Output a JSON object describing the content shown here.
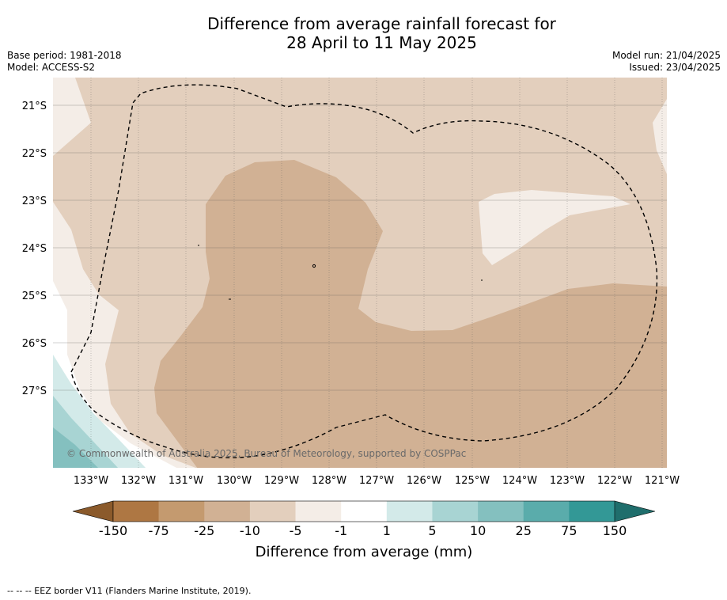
{
  "header": {
    "title_line1": "Difference from average rainfall forecast for",
    "title_line2": "28 April to 11 May 2025",
    "base_period": "Base period: 1981-2018",
    "model": "Model: ACCESS-S2",
    "model_run": "Model run: 21/04/2025",
    "issued": "Issued: 23/04/2025"
  },
  "map": {
    "lon_labels": [
      "133°W",
      "132°W",
      "131°W",
      "130°W",
      "129°W",
      "128°W",
      "127°W",
      "126°W",
      "125°W",
      "124°W",
      "123°W",
      "122°W",
      "121°W"
    ],
    "lat_labels": [
      "21°S",
      "22°S",
      "23°S",
      "24°S",
      "25°S",
      "26°S",
      "27°S"
    ],
    "copyright": "© Commonwealth of Australia 2025, Bureau of Meteorology, supported by COSPPac",
    "colors": {
      "neg_very_strong": "#8b5a2b",
      "neg_150_75": "#ae7743",
      "neg_75_25": "#c49a6f",
      "neg_25_10": "#d1b194",
      "neg_10_5": "#e3cfbd",
      "neg_5_1": "#f4ede7",
      "near_zero": "#ffffff",
      "pos_1_5": "#d3eae9",
      "pos_5_10": "#a8d4d3",
      "pos_10_25": "#84c0bf",
      "pos_25_75": "#5aacab",
      "pos_75_150": "#339896",
      "pos_very_strong": "#1f6e6c"
    }
  },
  "legend": {
    "tick_labels": [
      "-150",
      "-75",
      "-25",
      "-10",
      "-5",
      "-1",
      "1",
      "5",
      "10",
      "25",
      "75",
      "150"
    ],
    "label": "Difference from average (mm)",
    "colors": [
      "#ae7743",
      "#c49a6f",
      "#d1b194",
      "#e3cfbd",
      "#f4ede7",
      "#ffffff",
      "#d3eae9",
      "#a8d4d3",
      "#84c0bf",
      "#5aacab",
      "#339896"
    ],
    "end_colors": [
      "#8b5a2b",
      "#1f6e6c"
    ]
  },
  "footer": {
    "note": "--  --  -- EEZ border V11 (Flanders Marine Institute, 2019)."
  }
}
